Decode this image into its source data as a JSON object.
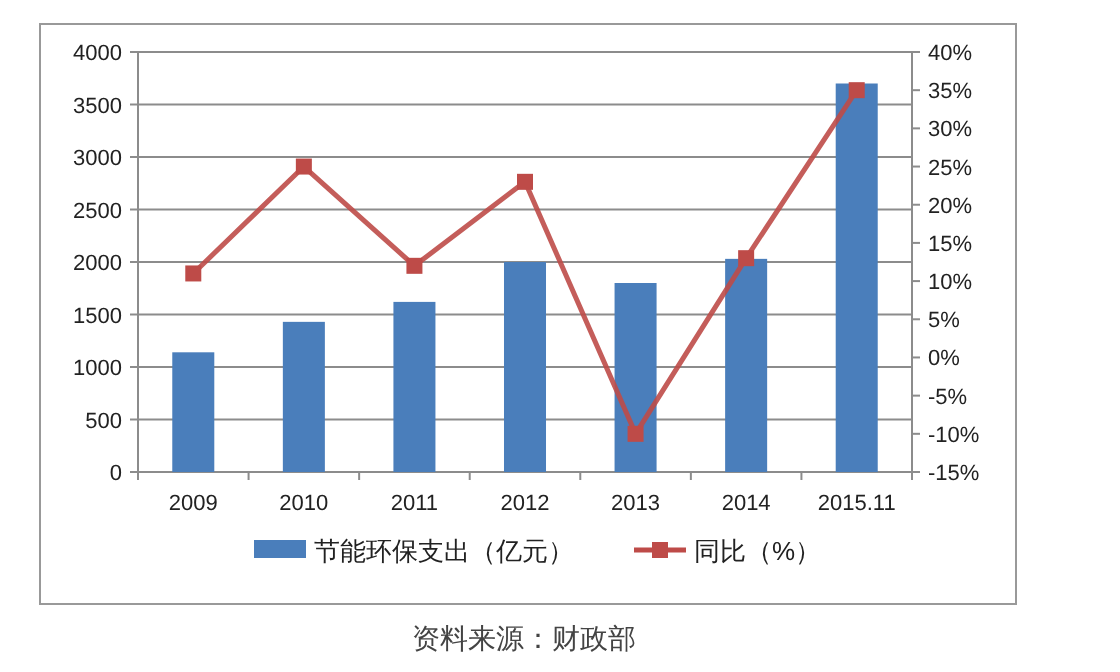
{
  "chart_data": {
    "type": "bar",
    "categories": [
      "2009",
      "2010",
      "2011",
      "2012",
      "2013",
      "2014",
      "2015.11"
    ],
    "series": [
      {
        "name": "节能环保支出（亿元）",
        "color": "#4a7ebb",
        "values": [
          1140,
          1430,
          1620,
          2000,
          1800,
          2030,
          3700
        ]
      },
      {
        "name": "同比（%）",
        "color": "#be4b48",
        "type": "line",
        "axis": "y2",
        "marker": "square",
        "values": [
          11,
          25,
          12,
          23,
          -10,
          13,
          35
        ]
      }
    ],
    "ylim": [
      0,
      4000
    ],
    "yticks": [
      0,
      500,
      1000,
      1500,
      2000,
      2500,
      3000,
      3500,
      4000
    ],
    "y2lim": [
      -15,
      40
    ],
    "y2ticks": [
      {
        "value": -15,
        "label": "-15%"
      },
      {
        "value": -10,
        "label": "-10%"
      },
      {
        "value": -5,
        "label": "-5%"
      },
      {
        "value": 0,
        "label": "0%"
      },
      {
        "value": 5,
        "label": "5%"
      },
      {
        "value": 10,
        "label": "10%"
      },
      {
        "value": 15,
        "label": "15%"
      },
      {
        "value": 20,
        "label": "20%"
      },
      {
        "value": 25,
        "label": "25%"
      },
      {
        "value": 30,
        "label": "30%"
      },
      {
        "value": 35,
        "label": "35%"
      },
      {
        "value": 40,
        "label": "40%"
      }
    ],
    "grid": "y",
    "legend": "bottom",
    "annotations": [
      "资料来源：财政部"
    ]
  }
}
